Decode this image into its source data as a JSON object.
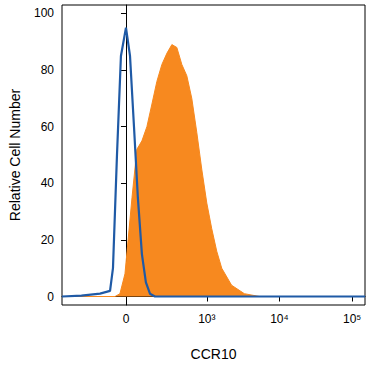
{
  "chart_data": {
    "type": "line",
    "x_label": "CCR10",
    "y_label": "Relative Cell Number",
    "xlim": [
      -580,
      150000
    ],
    "xticks": [
      0,
      {
        "value": 1000,
        "label": "10³"
      },
      {
        "value": 10000,
        "label": "10⁴"
      },
      {
        "value": 100000,
        "label": "10⁵"
      }
    ],
    "ylim": [
      -3,
      103
    ],
    "yticks": [
      0,
      20,
      40,
      60,
      80,
      100
    ],
    "grid": false,
    "series": [
      {
        "type": "area",
        "color": "#f7891f",
        "x": [
          -580,
          -55,
          -30,
          -5,
          30,
          55,
          82,
          111,
          143,
          178,
          218,
          264,
          315,
          374,
          443,
          523,
          616,
          724,
          850,
          1000,
          1170,
          1373,
          1610,
          2200,
          3300,
          5300,
          150000
        ],
        "values": [
          0,
          0,
          1,
          8,
          35,
          52,
          55,
          60,
          68,
          76,
          82,
          86,
          89,
          88,
          82,
          78,
          70,
          58,
          45,
          33,
          24,
          16,
          10,
          4,
          1,
          0,
          0
        ]
      },
      {
        "type": "line",
        "color": "#1f5aa6",
        "x": [
          -580,
          -300,
          -143,
          -82,
          -66,
          -45,
          -25,
          0,
          20,
          40,
          60,
          82,
          105,
          130,
          164,
          300,
          1000,
          10000,
          150000
        ],
        "values": [
          0,
          0.3,
          1,
          2,
          10,
          50,
          85,
          95,
          85,
          60,
          35,
          15,
          5,
          1,
          0,
          0,
          0,
          0,
          0
        ]
      }
    ]
  }
}
